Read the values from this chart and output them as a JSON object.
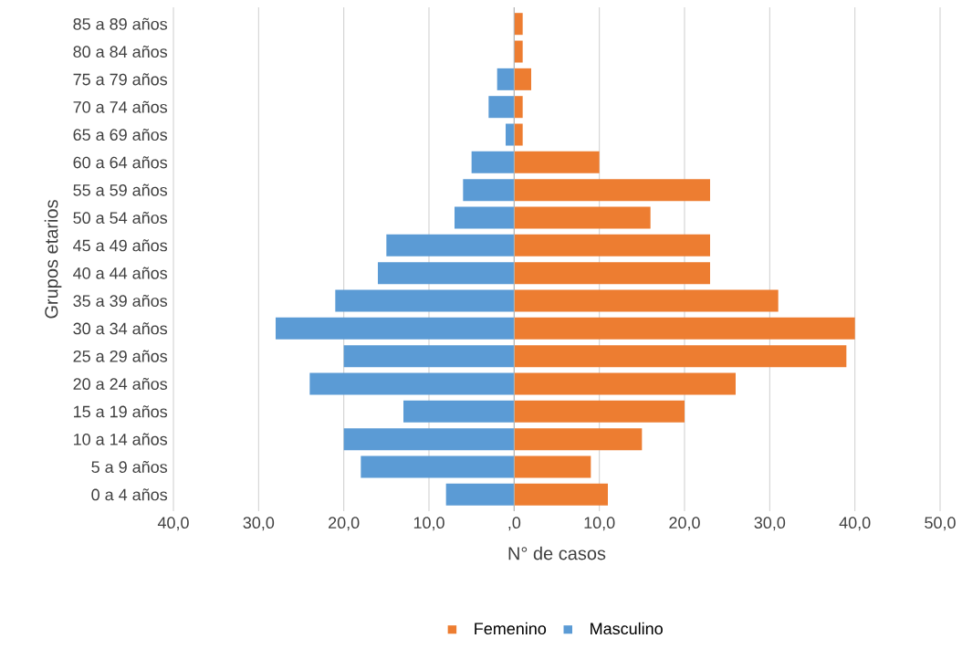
{
  "chart_data": {
    "type": "bar",
    "orientation": "horizontal",
    "xlabel": "N° de casos",
    "ylabel": "Grupos etarios",
    "categories": [
      "85 a 89 años",
      "80 a 84 años",
      "75 a 79 años",
      "70 a 74 años",
      "65 a 69 años",
      "60 a 64 años",
      "55 a 59 años",
      "50 a 54 años",
      "45 a 49 años",
      "40 a 44 años",
      "35 a 39 años",
      "30 a 34 años",
      "25 a 29 años",
      "20 a 24 años",
      "15 a 19 años",
      "10 a 14 años",
      "5 a 9 años",
      "0 a 4 años"
    ],
    "series": [
      {
        "name": "Femenino",
        "color": "#ed7d31",
        "values": [
          1,
          1,
          2,
          1,
          1,
          10,
          23,
          16,
          23,
          23,
          31,
          40,
          39,
          26,
          20,
          15,
          9,
          11
        ]
      },
      {
        "name": "Masculino",
        "color": "#5b9bd5",
        "values": [
          0,
          0,
          -2,
          -3,
          -1,
          -5,
          -6,
          -7,
          -15,
          -16,
          -21,
          -28,
          -20,
          -24,
          -13,
          -20,
          -18,
          -8
        ]
      }
    ],
    "xlim": [
      -40,
      50
    ],
    "xticks": [
      {
        "value": -40,
        "label": "40,0"
      },
      {
        "value": -30,
        "label": "30,0"
      },
      {
        "value": -20,
        "label": "20,0"
      },
      {
        "value": -10,
        "label": "10,0"
      },
      {
        "value": 0,
        "label": ",0"
      },
      {
        "value": 10,
        "label": "10,0"
      },
      {
        "value": 20,
        "label": "20,0"
      },
      {
        "value": 30,
        "label": "30,0"
      },
      {
        "value": 40,
        "label": "40,0"
      },
      {
        "value": 50,
        "label": "50,0"
      }
    ],
    "grid": "x",
    "legend": "bottom",
    "stacked": true
  }
}
